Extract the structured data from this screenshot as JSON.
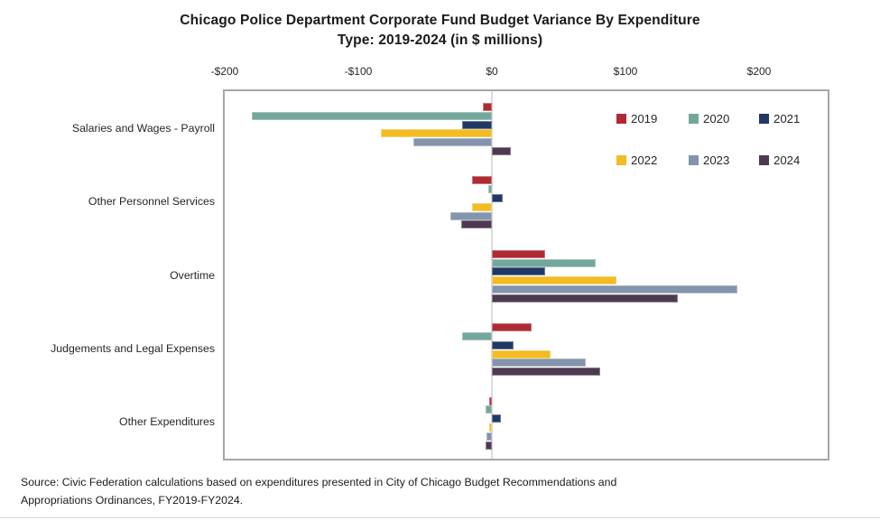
{
  "title": "Chicago Police Department Corporate Fund Budget Variance By Expenditure\nType: 2019-2024 (in $ millions)",
  "source": "Source: Civic Federation calculations based on expenditures presented in City of Chicago Budget Recommendations and\nAppropriations Ordinances, FY2019-FY2024.",
  "chart_data": {
    "type": "bar",
    "orientation": "horizontal",
    "title": "Chicago Police Department Corporate Fund Budget Variance By Expenditure Type: 2019-2024 (in $ millions)",
    "unit": "$ millions",
    "categories": [
      "Salaries and Wages - Payroll",
      "Other Personnel Services",
      "Overtime",
      "Judgements and Legal Expenses",
      "Other Expenditures"
    ],
    "series": [
      {
        "name": "2019",
        "color": "#af2b34",
        "values": [
          -7,
          -15,
          40,
          30,
          -2
        ]
      },
      {
        "name": "2020",
        "color": "#74a79b",
        "values": [
          -180,
          -3,
          78,
          -22,
          -5
        ]
      },
      {
        "name": "2021",
        "color": "#203864",
        "values": [
          -22,
          8,
          40,
          16,
          7
        ]
      },
      {
        "name": "2022",
        "color": "#f3bb24",
        "values": [
          -83,
          -15,
          93,
          44,
          -2
        ]
      },
      {
        "name": "2023",
        "color": "#8494ac",
        "values": [
          -59,
          -31,
          184,
          70,
          -4
        ]
      },
      {
        "name": "2024",
        "color": "#4d3a51",
        "values": [
          14,
          -23,
          139,
          81,
          -5
        ]
      }
    ],
    "x_ticks": [
      {
        "label": "-$200",
        "value": -200
      },
      {
        "label": "-$100",
        "value": -100
      },
      {
        "label": "$0",
        "value": 0
      },
      {
        "label": "$100",
        "value": 100
      },
      {
        "label": "$200",
        "value": 200
      }
    ],
    "x_range": [
      -200,
      251
    ],
    "grid": false,
    "legend_position": "inside-top-right"
  }
}
